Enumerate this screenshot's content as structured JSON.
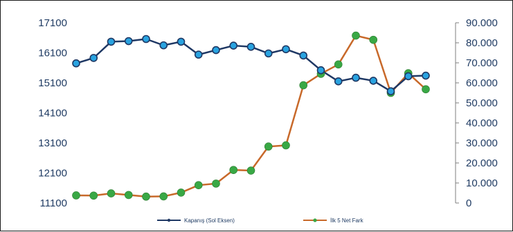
{
  "chart_data": {
    "type": "line",
    "title": "",
    "xlabel": "",
    "x": [
      1,
      2,
      3,
      4,
      5,
      6,
      7,
      8,
      9,
      10,
      11,
      12,
      13,
      14,
      15,
      16,
      17,
      18,
      19,
      20,
      21
    ],
    "y_left": {
      "ylim": [
        11100,
        17100
      ],
      "ticks": [
        "11100",
        "12100",
        "13100",
        "14100",
        "15100",
        "16100",
        "17100"
      ]
    },
    "y_right": {
      "ylim": [
        0,
        90000
      ],
      "ticks": [
        "0",
        "10.000",
        "20.000",
        "30.000",
        "40.000",
        "50.000",
        "60.000",
        "70.000",
        "80.000",
        "90.000"
      ]
    },
    "series": [
      {
        "name": "Kapanış (Sol Eksen)",
        "axis": "left",
        "color": "#1f3864",
        "marker_fill": "#29a3e0",
        "values": [
          15750,
          15930,
          16470,
          16490,
          16560,
          16350,
          16470,
          16040,
          16190,
          16340,
          16300,
          16080,
          16220,
          16010,
          15520,
          15150,
          15270,
          15170,
          14820,
          15320,
          15340
        ]
      },
      {
        "name": "İlk 5 Net Fark",
        "axis": "right",
        "color": "#c8692a",
        "marker_fill": "#39a845",
        "values": [
          3800,
          3700,
          4800,
          4000,
          3200,
          3300,
          5200,
          8900,
          9700,
          16500,
          16200,
          28200,
          28800,
          58800,
          64500,
          69200,
          83600,
          81500,
          55000,
          64800,
          56800
        ]
      }
    ],
    "grid": false,
    "legend": "bottom"
  },
  "legend": {
    "series1_label": "Kapanış (Sol Eksen)",
    "series2_label": "İlk 5 Net Fark"
  }
}
